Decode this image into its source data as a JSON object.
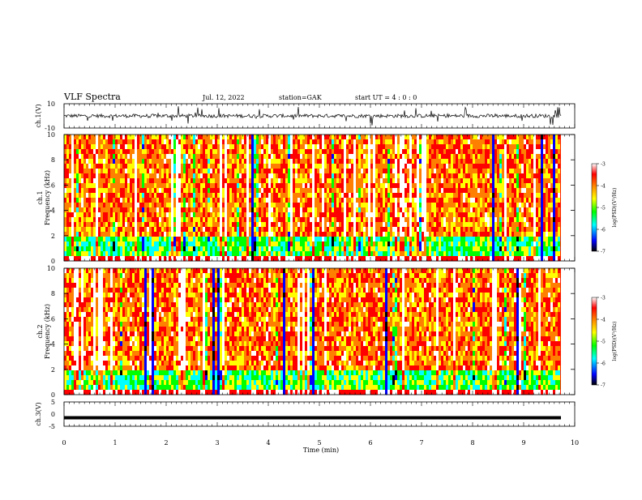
{
  "header": {
    "title": "VLF Spectra",
    "date": "Jul. 12, 2022",
    "station": "station=GAK",
    "start": "start UT =  4 : 0  : 0"
  },
  "colors": {
    "colormap": [
      "#000000",
      "#0000ff",
      "#00ffff",
      "#00ff00",
      "#ffff00",
      "#ff8000",
      "#ff0000",
      "#ffffff"
    ],
    "waveform": "#000000",
    "background": "#ffffff"
  },
  "chart_data": [
    {
      "type": "line",
      "panel": "ch1-waveform",
      "ylabel": "ch.1(V)",
      "ylim": [
        -10,
        10
      ],
      "yticks": [
        "10",
        "-10"
      ],
      "xlim": [
        0,
        10
      ],
      "description_series": "noisy waveform hovering near 0 V with frequent sferic spikes to about ±8 V"
    },
    {
      "type": "heatmap",
      "panel": "ch1-spectrogram",
      "ylabel": "ch.1\nFrequency (kHz)",
      "ylabel_line1": "ch.1",
      "ylabel_line2": "Frequency (kHz)",
      "ylim": [
        0,
        10
      ],
      "yticks": [
        "0",
        "2",
        "4",
        "6",
        "8",
        "10"
      ],
      "xlim": [
        0,
        10
      ],
      "colorbar": {
        "label": "log(PSD)(V²/Hz)",
        "range": [
          -7,
          -3
        ],
        "ticks": [
          "-3",
          "-4",
          "-5",
          "-6",
          "-7"
        ]
      }
    },
    {
      "type": "heatmap",
      "panel": "ch2-spectrogram",
      "ylabel_line1": "ch.2",
      "ylabel_line2": "Frequency (kHz)",
      "ylim": [
        0,
        10
      ],
      "yticks": [
        "0",
        "2",
        "4",
        "6",
        "8",
        "10"
      ],
      "xlim": [
        0,
        10
      ],
      "colorbar": {
        "label": "log(PSD)(V²/Hz)",
        "range": [
          -7,
          -3
        ],
        "ticks": [
          "-3",
          "-4",
          "-5",
          "-6",
          "-7"
        ]
      }
    },
    {
      "type": "line",
      "panel": "ch3-waveform",
      "ylabel": "ch.3(V)",
      "ylim": [
        -5,
        5
      ],
      "yticks": [
        "5",
        "0",
        "-5"
      ],
      "xlim": [
        0,
        10
      ],
      "constant_value": -1.5
    }
  ],
  "xaxis": {
    "label": "Time (min)",
    "ticks": [
      "0",
      "1",
      "2",
      "3",
      "4",
      "5",
      "6",
      "7",
      "8",
      "9",
      "10"
    ]
  }
}
